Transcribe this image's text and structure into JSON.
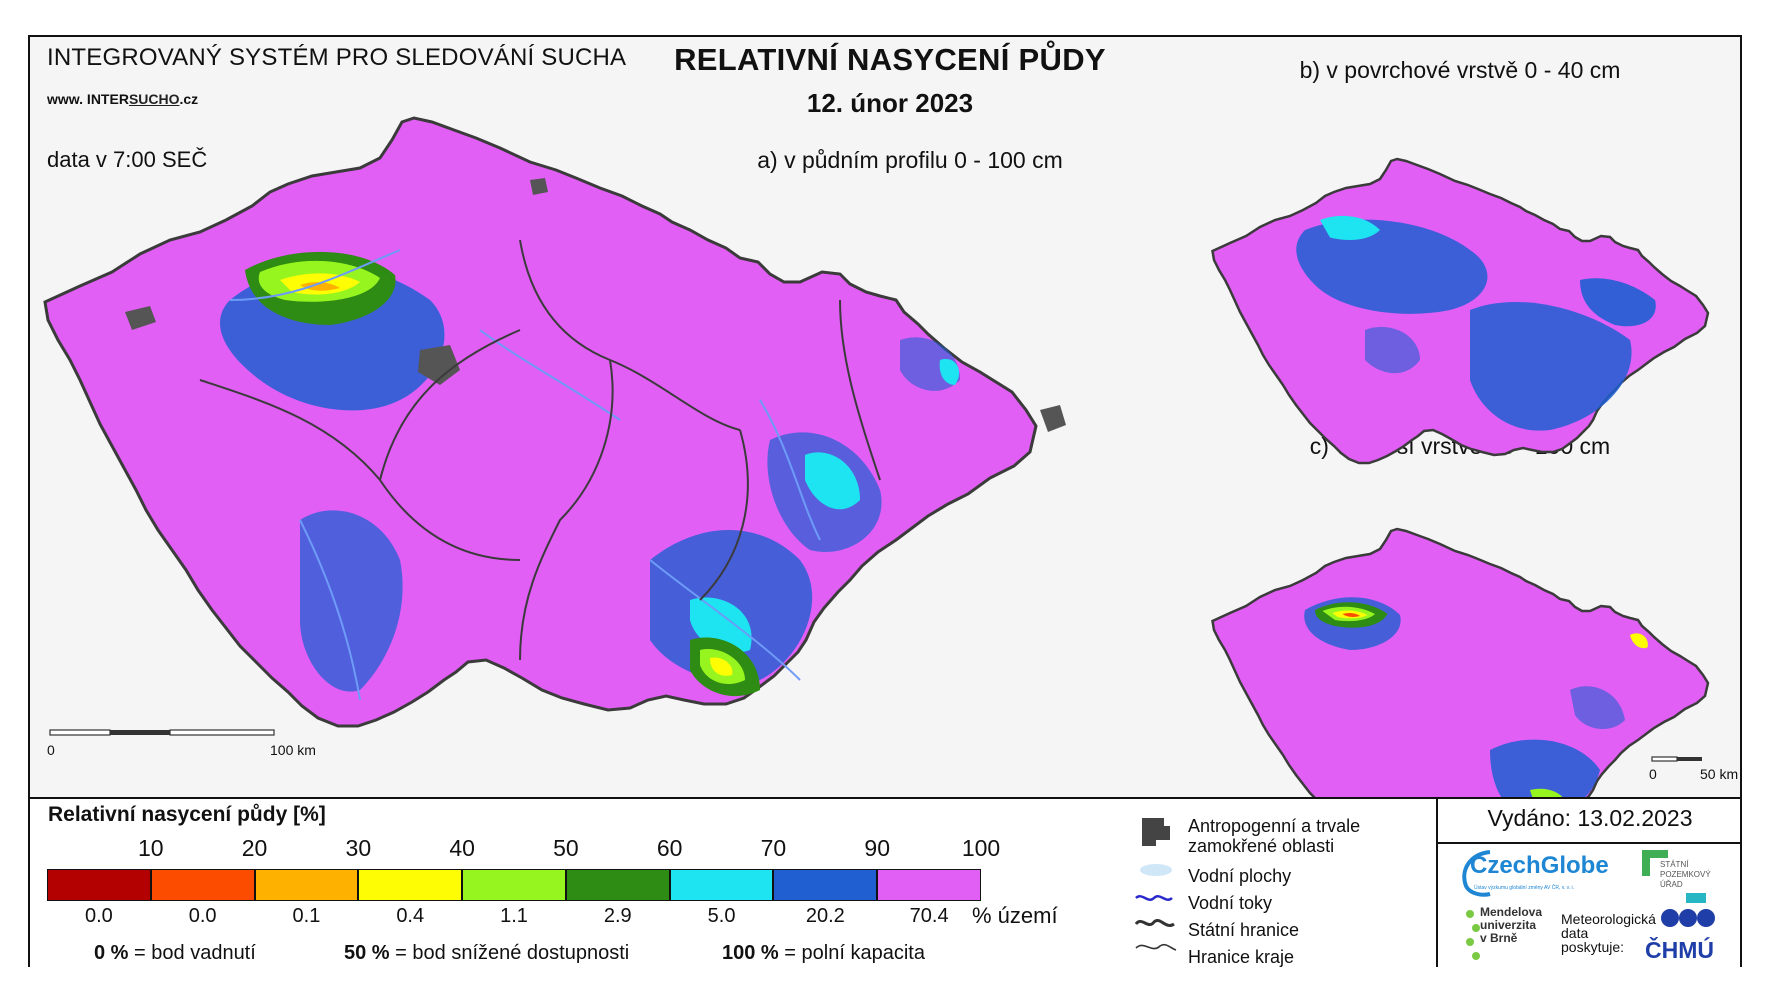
{
  "header": {
    "system": "INTEGROVANÝ SYSTÉM PRO SLEDOVÁNÍ SUCHA",
    "website_prefix": "www. INTER",
    "website_mid": "SUCHO",
    "website_suffix": ".cz",
    "data_time": "data v 7:00 SEČ",
    "title": "RELATIVNÍ NASYCENÍ PŮDY",
    "date": "12. únor 2023"
  },
  "maps": {
    "a_label": "a) v půdním profilu 0 - 100 cm",
    "b_label": "b) v povrchové vrstvě 0 - 40 cm",
    "c_label": "c) v hlubší vrstvě 40 - 100 cm",
    "scale_main_start": "0",
    "scale_main_end": "100 km",
    "scale_small_start": "0",
    "scale_small_end": "50 km",
    "colors": {
      "background": "#f5f5f5",
      "saturated": "#e15ff5",
      "wet": "#1f5fd1",
      "moist": "#1ee3f0",
      "border": "#3b3b3b",
      "river": "#6e9bf7",
      "anthropogenic": "#555555"
    }
  },
  "legend": {
    "title": "Relativní nasycení půdy [%]",
    "ticks": [
      "10",
      "20",
      "30",
      "40",
      "50",
      "60",
      "70",
      "90",
      "100"
    ],
    "classes": [
      {
        "color": "#b30000",
        "percent": "0.0"
      },
      {
        "color": "#fc4c00",
        "percent": "0.0"
      },
      {
        "color": "#ffb100",
        "percent": "0.1"
      },
      {
        "color": "#fffd03",
        "percent": "0.4"
      },
      {
        "color": "#97f51f",
        "percent": "1.1"
      },
      {
        "color": "#2e8b13",
        "percent": "2.9"
      },
      {
        "color": "#1ee3f0",
        "percent": "5.0"
      },
      {
        "color": "#1f5fd1",
        "percent": "20.2"
      },
      {
        "color": "#e15ff5",
        "percent": "70.4"
      }
    ],
    "percent_unit": "% území",
    "notes": [
      {
        "value": "0 %",
        "text": "= bod vadnutí"
      },
      {
        "value": "50 %",
        "text": "= bod snížené dostupnosti"
      },
      {
        "value": "100 %",
        "text": "= polní kapacita"
      }
    ]
  },
  "key": {
    "anthropogenic_1": "Antropogenní a trvale",
    "anthropogenic_2": "zamokřené oblasti",
    "water_bodies": "Vodní plochy",
    "water_streams": "Vodní toky",
    "state_border": "Státní hranice",
    "region_border": "Hranice kraje"
  },
  "footer": {
    "issued": "Vydáno: 13.02.2023",
    "czechglobe": "CzechGlobe",
    "czechglobe_sub": "Ústav výzkumu globální změny AV ČR, v. v. i.",
    "spu_1": "STÁTNÍ",
    "spu_2": "POZEMKOVÝ",
    "spu_3": "ÚŘAD",
    "mendel_1": "Mendelova",
    "mendel_2": "univerzita",
    "mendel_3": "v Brně",
    "met_1": "Meteorologická",
    "met_2": "data",
    "met_3": "poskytuje:",
    "chmu": "ČHMÚ"
  }
}
